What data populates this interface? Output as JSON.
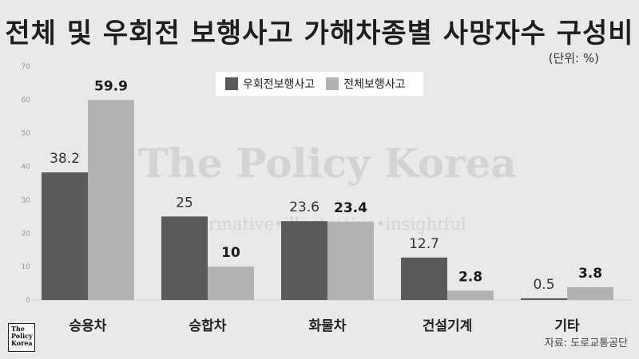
{
  "title": "전체 및 우회전 보행사고 가해차종별 사망자수 구성비",
  "unit": "(단위: %)",
  "source": "자료: 도로교통공단",
  "logo": "The Policy Korea",
  "watermark": {
    "line1": "The Policy Korea",
    "line2": "informative•illustrative•insightful"
  },
  "colors": {
    "series1": "#5a5a5a",
    "series2": "#b2b2b2",
    "background": "#e9e9e9"
  },
  "chart_data": {
    "type": "bar",
    "categories": [
      "승용차",
      "승합차",
      "화물차",
      "건설기계",
      "기타"
    ],
    "series": [
      {
        "name": "우회전보행사고",
        "values": [
          38.2,
          25,
          23.6,
          12.7,
          0.5
        ]
      },
      {
        "name": "전체보행사고",
        "values": [
          59.9,
          10,
          23.4,
          2.8,
          3.8
        ]
      }
    ],
    "ylim": [
      0,
      70
    ],
    "yticks": [
      0,
      10,
      20,
      30,
      40,
      50,
      60,
      70
    ],
    "grid": false,
    "legend": "top-center"
  }
}
